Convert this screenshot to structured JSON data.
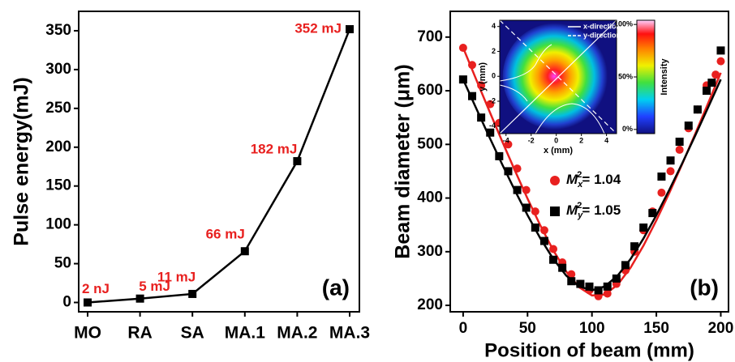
{
  "chart_data": [
    {
      "type": "line",
      "ylabel": "Pulse energy(mJ)",
      "annotation": "(a)",
      "categories": [
        "MO",
        "RA",
        "SA",
        "MA.1",
        "MA.2",
        "MA.3"
      ],
      "values": [
        2e-06,
        5,
        11,
        66,
        182,
        352
      ],
      "value_labels": [
        "2 nJ",
        "5 mJ",
        "11 mJ",
        "66 mJ",
        "182 mJ",
        "352 mJ"
      ],
      "color": "#000000",
      "label_color": "#e8201f",
      "ylim": [
        -12,
        375
      ],
      "yticks": [
        0,
        50,
        100,
        150,
        200,
        250,
        300,
        350
      ]
    },
    {
      "type": "scatter",
      "xlabel": "Position of beam (mm)",
      "ylabel": "Beam diameter (μm)",
      "annotation": "(b)",
      "xlim": [
        -10,
        206
      ],
      "xticks": [
        0,
        50,
        100,
        150,
        200
      ],
      "ylim": [
        188,
        748
      ],
      "yticks": [
        200,
        300,
        400,
        500,
        600,
        700
      ],
      "series": [
        {
          "legend": {
            "base": "M",
            "sub": "x",
            "sup": "2",
            "value": "= 1.04"
          },
          "color": "#e8201f",
          "marker": "circle",
          "x": [
            0,
            7,
            14,
            21,
            28,
            35,
            42,
            49,
            56,
            63,
            70,
            77,
            84,
            91,
            98,
            105,
            112,
            119,
            126,
            133,
            140,
            147,
            154,
            161,
            168,
            175,
            182,
            189,
            196,
            200
          ],
          "values": [
            680,
            648,
            610,
            575,
            540,
            500,
            455,
            415,
            375,
            340,
            305,
            280,
            258,
            240,
            228,
            217,
            222,
            240,
            265,
            300,
            340,
            375,
            410,
            450,
            490,
            530,
            565,
            610,
            630,
            655
          ],
          "fit_x": [
            0,
            10,
            20,
            30,
            40,
            50,
            60,
            70,
            80,
            90,
            100,
            110,
            120,
            130,
            140,
            150,
            160,
            170,
            180,
            190,
            200
          ],
          "fit_values": [
            680.2,
            621.9,
            564.2,
            507.5,
            452.3,
            399.0,
            348.6,
            302.5,
            263.1,
            233.7,
            218.4,
            220.2,
            238.6,
            270.3,
            311.3,
            358.4,
            409.4,
            463.2,
            518.8,
            575.7,
            633.5
          ]
        },
        {
          "legend": {
            "base": "M",
            "sub": "y",
            "sup": "2",
            "value": "= 1.05"
          },
          "color": "#000000",
          "marker": "square",
          "x": [
            0,
            7,
            14,
            21,
            28,
            35,
            42,
            49,
            56,
            63,
            70,
            77,
            84,
            91,
            98,
            105,
            112,
            119,
            126,
            133,
            140,
            147,
            154,
            161,
            168,
            175,
            182,
            189,
            193,
            200
          ],
          "values": [
            621,
            590,
            550,
            522,
            478,
            450,
            415,
            382,
            345,
            320,
            285,
            270,
            245,
            240,
            235,
            228,
            235,
            250,
            275,
            310,
            345,
            372,
            440,
            470,
            505,
            535,
            565,
            600,
            615,
            675
          ],
          "fit_x": [
            0,
            10,
            20,
            30,
            40,
            50,
            60,
            70,
            80,
            90,
            100,
            110,
            120,
            130,
            140,
            150,
            160,
            170,
            180,
            190,
            200
          ],
          "fit_values": [
            621.0,
            568.0,
            515.6,
            464.4,
            415.0,
            368.1,
            324.7,
            286.4,
            255.6,
            235.2,
            228.0,
            235.2,
            255.6,
            286.4,
            324.7,
            368.1,
            415.0,
            464.4,
            515.6,
            568.0,
            621.0
          ]
        }
      ],
      "inset": {
        "xlabel": "x (mm)",
        "ylabel": "y (mm)",
        "xlim": [
          -4.5,
          4.8
        ],
        "ylim": [
          -4.6,
          4.5
        ],
        "xticks": [
          -4,
          -2,
          0,
          2,
          4
        ],
        "yticks": [
          -4,
          -2,
          0,
          2,
          4
        ],
        "lines": [
          "x-direction",
          "y-direction"
        ],
        "colorbar_label": "Intensity",
        "colorbar_lim": [
          -4,
          104
        ],
        "colorbar_ticks": [
          {
            "value": 100,
            "label": "100%"
          },
          {
            "value": 50,
            "label": "50%"
          },
          {
            "value": 0,
            "label": "0%"
          }
        ]
      }
    }
  ]
}
